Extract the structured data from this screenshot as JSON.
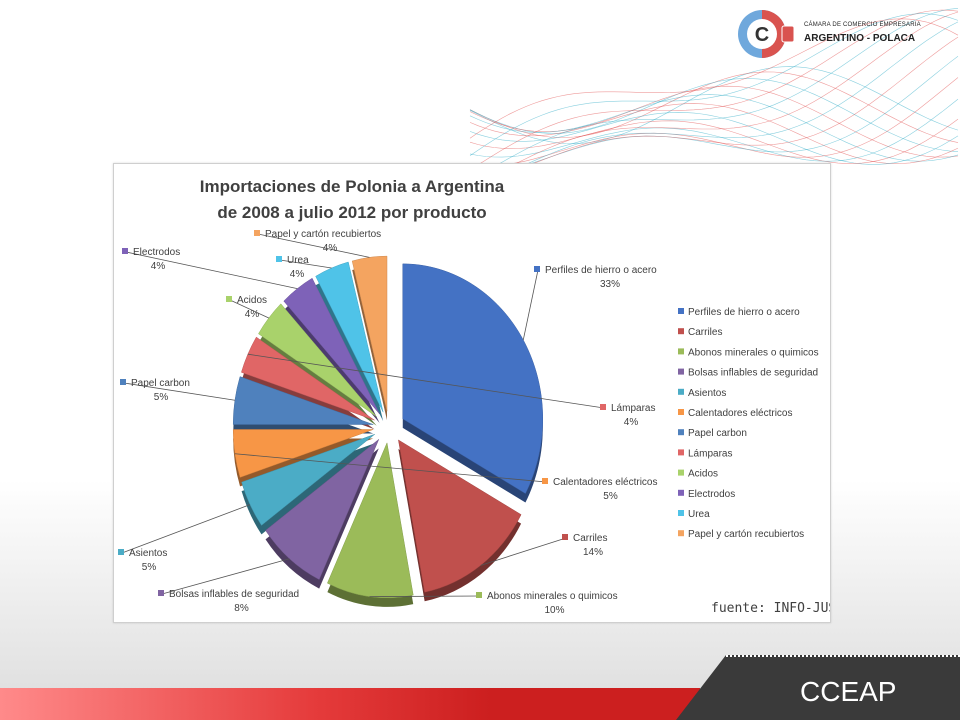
{
  "logo": {
    "line1": "CÁMARA DE COMERCIO EMPRESARIA",
    "line2": "ARGENTINO - POLACA",
    "emblem_letter": "C"
  },
  "footer": {
    "brand": "CCEAP"
  },
  "chart_data": {
    "type": "pie",
    "title": "Importaciones de Polonia a Argentina",
    "subtitle": "de 2008 a julio 2012 por producto",
    "source": "fuente: INFO-JUST",
    "legend_position": "right",
    "slices": [
      {
        "name": "Perfiles de hierro o acero",
        "percent_label": "33%",
        "value": 33,
        "color": "#4472c4"
      },
      {
        "name": "Carriles",
        "percent_label": "14%",
        "value": 14,
        "color": "#c0504d"
      },
      {
        "name": "Abonos minerales o quimicos",
        "percent_label": "10%",
        "value": 10,
        "color": "#9bbb59"
      },
      {
        "name": "Bolsas inflables de seguridad",
        "percent_label": "8%",
        "value": 8,
        "color": "#8064a2"
      },
      {
        "name": "Asientos",
        "percent_label": "5%",
        "value": 5,
        "color": "#4bacc6"
      },
      {
        "name": "Calentadores eléctricos",
        "percent_label": "5%",
        "value": 5,
        "color": "#f79646"
      },
      {
        "name": "Papel carbon",
        "percent_label": "5%",
        "value": 5,
        "color": "#4f81bd"
      },
      {
        "name": "Lámparas",
        "percent_label": "4%",
        "value": 4,
        "color": "#e06666"
      },
      {
        "name": "Acidos",
        "percent_label": "4%",
        "value": 4,
        "color": "#a9d26b"
      },
      {
        "name": "Electrodos",
        "percent_label": "4%",
        "value": 4,
        "color": "#7e62b8"
      },
      {
        "name": "Urea",
        "percent_label": "4%",
        "value": 4,
        "color": "#4fc3e8"
      },
      {
        "name": "Papel y cartón recubiertos",
        "percent_label": "4%",
        "value": 4,
        "color": "#f4a460"
      }
    ]
  }
}
